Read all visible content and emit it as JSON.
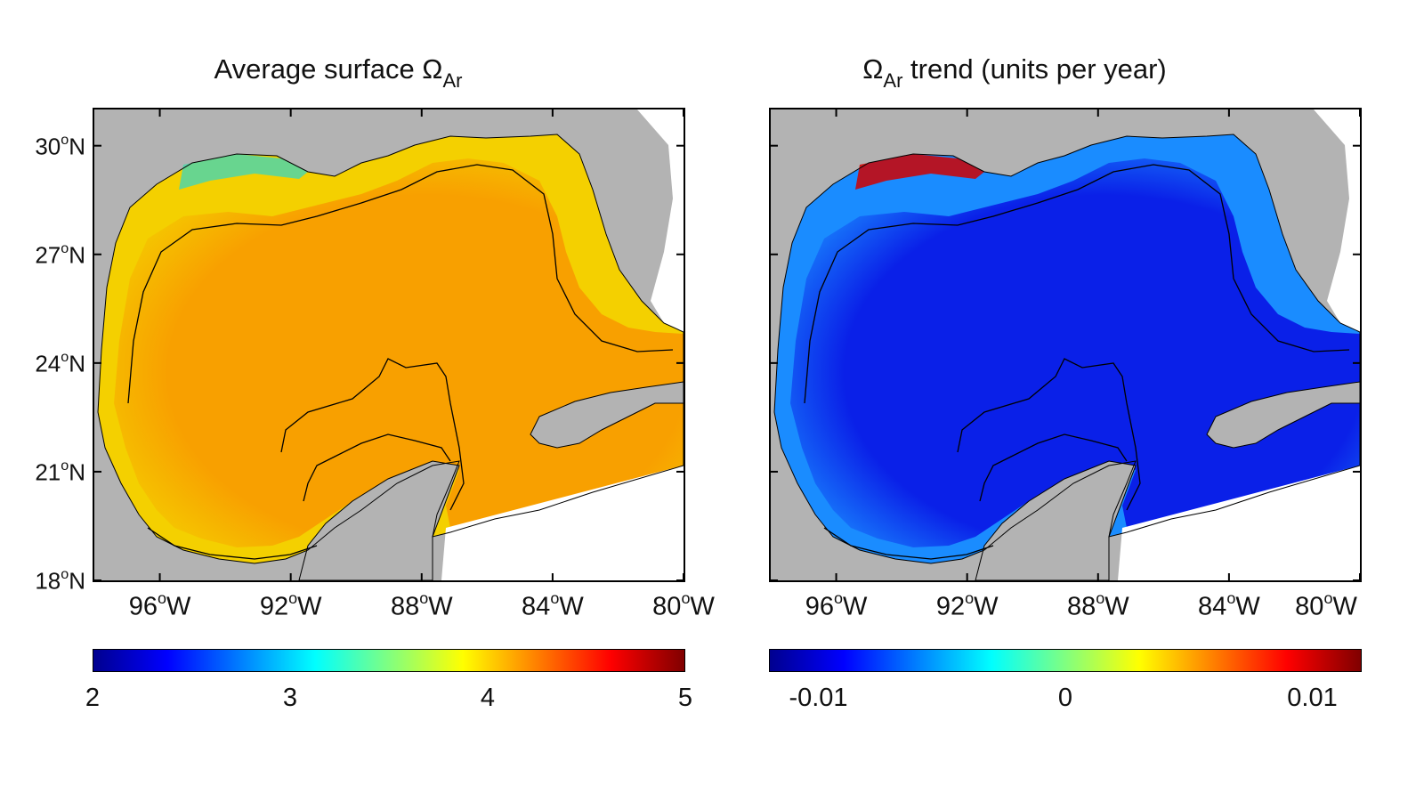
{
  "panels": [
    {
      "title_main": "Average surface Ω",
      "title_sub": "Ar",
      "title_rest": "",
      "colorbar": {
        "ticks": [
          "2",
          "3",
          "4",
          "5"
        ],
        "range": [
          2,
          5
        ]
      },
      "ocean_fill_color": "#f8a000",
      "shelf_color": "#f4d000",
      "coast_color": "#4fd6a8"
    },
    {
      "title_main": "Ω",
      "title_sub": "Ar",
      "title_rest": " trend (units per year)",
      "colorbar": {
        "ticks": [
          "-0.01",
          "0",
          "0.01"
        ],
        "range": [
          -0.012,
          0.012
        ]
      },
      "ocean_fill_color": "#0a20e8",
      "shelf_color": "#1a8cff",
      "coast_color": "#d00000"
    }
  ],
  "axes": {
    "y_ticks": [
      {
        "deg": "30",
        "hem": "N",
        "value": 30
      },
      {
        "deg": "27",
        "hem": "N",
        "value": 27
      },
      {
        "deg": "24",
        "hem": "N",
        "value": 24
      },
      {
        "deg": "21",
        "hem": "N",
        "value": 21
      },
      {
        "deg": "18",
        "hem": "N",
        "value": 18
      }
    ],
    "x_ticks": [
      {
        "deg": "96",
        "hem": "W",
        "value": -96
      },
      {
        "deg": "92",
        "hem": "W",
        "value": -92
      },
      {
        "deg": "88",
        "hem": "W",
        "value": -88
      },
      {
        "deg": "84",
        "hem": "W",
        "value": -84
      },
      {
        "deg": "80",
        "hem": "W",
        "value": -80
      }
    ],
    "lon_range": [
      -98,
      -80
    ],
    "lat_range": [
      18,
      31
    ],
    "degree_symbol": "o"
  },
  "colors": {
    "land": "#b3b3b3",
    "colormap": [
      "#00008f",
      "#0000ff",
      "#0080ff",
      "#00ffff",
      "#80ff80",
      "#ffff00",
      "#ff8000",
      "#ff0000",
      "#800000"
    ]
  }
}
